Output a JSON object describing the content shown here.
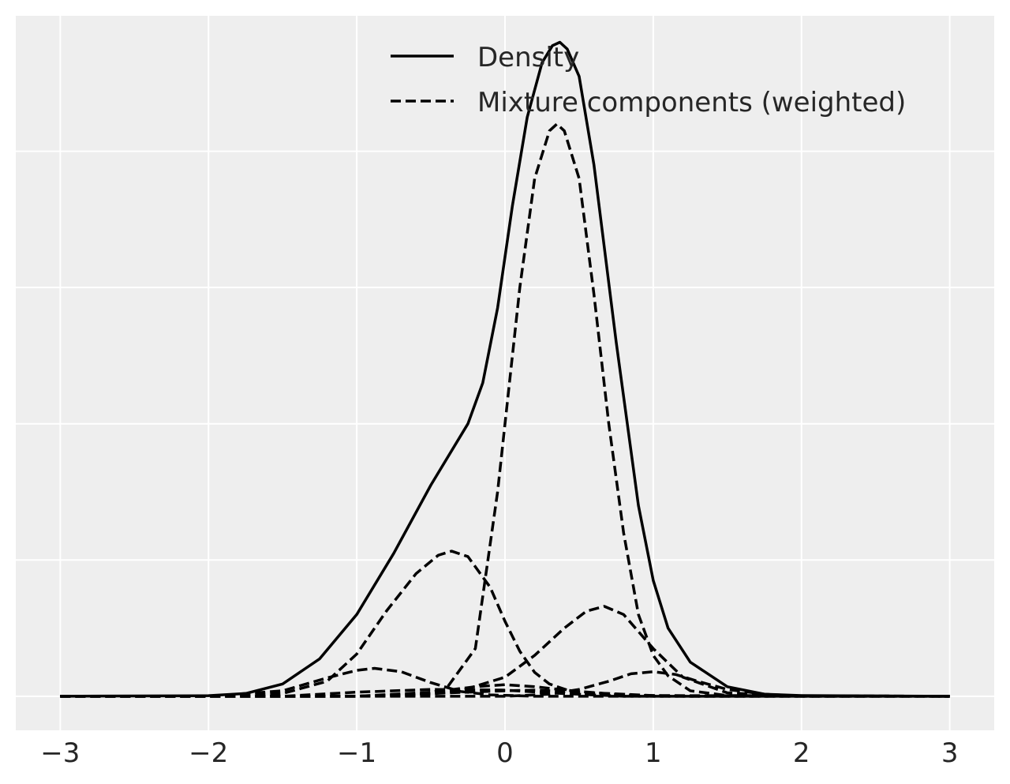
{
  "chart_data": {
    "type": "line",
    "title": "",
    "xlabel": "",
    "ylabel": "",
    "xlim": [
      -3.3,
      3.3
    ],
    "ylim": [
      -0.05,
      1.0
    ],
    "x_ticks": [
      -3,
      -2,
      -1,
      0,
      1,
      2,
      3
    ],
    "x_tick_labels": [
      "−3",
      "−2",
      "−1",
      "0",
      "1",
      "2",
      "3"
    ],
    "y_grid": [
      0.0,
      0.2,
      0.4,
      0.6,
      0.8,
      1.0
    ],
    "grid": true,
    "legend_placement": "top-right",
    "legend": [
      {
        "label": "Density",
        "style": "solid"
      },
      {
        "label": "Mixture components (weighted)",
        "style": "dashed"
      }
    ],
    "series": [
      {
        "style": "solid",
        "x": [
          -3.0,
          -2.0,
          -1.75,
          -1.5,
          -1.25,
          -1.0,
          -0.75,
          -0.5,
          -0.25,
          -0.15,
          -0.05,
          0.05,
          0.15,
          0.25,
          0.32,
          0.37,
          0.42,
          0.5,
          0.6,
          0.75,
          0.9,
          1.0,
          1.1,
          1.25,
          1.5,
          1.75,
          2.0,
          3.0
        ],
        "y": [
          0.0,
          0.0008,
          0.004,
          0.018,
          0.055,
          0.12,
          0.21,
          0.31,
          0.4,
          0.46,
          0.57,
          0.72,
          0.85,
          0.93,
          0.955,
          0.96,
          0.95,
          0.91,
          0.78,
          0.52,
          0.28,
          0.17,
          0.1,
          0.05,
          0.014,
          0.003,
          0.001,
          0.0
        ]
      },
      {
        "style": "dashed",
        "x": [
          -3.0,
          -2.0,
          -1.5,
          -1.2,
          -1.0,
          -0.8,
          -0.6,
          -0.45,
          -0.36,
          -0.25,
          -0.1,
          0.0,
          0.1,
          0.2,
          0.3,
          0.5,
          0.8,
          1.2,
          2.0,
          3.0
        ],
        "y": [
          0.0,
          0.0,
          0.004,
          0.022,
          0.062,
          0.125,
          0.18,
          0.207,
          0.213,
          0.205,
          0.16,
          0.11,
          0.066,
          0.035,
          0.018,
          0.003,
          0.0,
          0.0,
          0.0,
          0.0
        ]
      },
      {
        "style": "dashed",
        "x": [
          -3.0,
          -1.0,
          -0.6,
          -0.4,
          -0.2,
          -0.05,
          0.1,
          0.2,
          0.3,
          0.35,
          0.4,
          0.5,
          0.6,
          0.7,
          0.8,
          0.9,
          1.0,
          1.1,
          1.25,
          1.5,
          3.0
        ],
        "y": [
          0.0,
          0.0,
          0.0015,
          0.01,
          0.07,
          0.3,
          0.6,
          0.76,
          0.83,
          0.84,
          0.83,
          0.76,
          0.59,
          0.4,
          0.24,
          0.12,
          0.06,
          0.03,
          0.008,
          0.001,
          0.0
        ]
      },
      {
        "style": "dashed",
        "x": [
          -3.0,
          -1.2,
          -0.6,
          -0.3,
          0.0,
          0.2,
          0.4,
          0.55,
          0.67,
          0.8,
          1.0,
          1.2,
          1.5,
          2.0,
          3.0
        ],
        "y": [
          0.0,
          0.0,
          0.001,
          0.008,
          0.028,
          0.06,
          0.1,
          0.125,
          0.132,
          0.12,
          0.07,
          0.028,
          0.005,
          0.0,
          0.0
        ]
      },
      {
        "style": "dashed",
        "x": [
          -3.0,
          -2.0,
          -1.5,
          -1.2,
          -1.0,
          -0.88,
          -0.7,
          -0.5,
          -0.3,
          -0.1,
          0.2,
          0.5,
          3.0
        ],
        "y": [
          0.0,
          0.0,
          0.008,
          0.027,
          0.038,
          0.041,
          0.036,
          0.02,
          0.007,
          0.002,
          0.0,
          0.0,
          0.0
        ]
      },
      {
        "style": "dashed",
        "x": [
          -3.0,
          0.0,
          0.3,
          0.5,
          0.7,
          0.85,
          1.0,
          1.15,
          1.3,
          1.5,
          1.75,
          2.0,
          3.0
        ],
        "y": [
          0.0,
          0.0,
          0.003,
          0.01,
          0.022,
          0.033,
          0.036,
          0.032,
          0.022,
          0.01,
          0.003,
          0.0005,
          0.0
        ]
      },
      {
        "style": "dashed",
        "x": [
          -3.0,
          -1.0,
          -0.5,
          -0.2,
          0.0,
          0.2,
          0.5,
          0.8,
          1.2,
          3.0
        ],
        "y": [
          0.0,
          0.0,
          0.006,
          0.014,
          0.017,
          0.014,
          0.007,
          0.002,
          0.0,
          0.0
        ]
      },
      {
        "style": "dashed",
        "x": [
          -3.0,
          -1.5,
          -1.0,
          -0.5,
          0.0,
          0.3,
          0.6,
          1.0,
          3.0
        ],
        "y": [
          0.0,
          0.0,
          0.006,
          0.01,
          0.009,
          0.005,
          0.002,
          0.0,
          0.0
        ]
      },
      {
        "style": "dashed",
        "x": [
          -3.0,
          -1.0,
          -0.5,
          0.0,
          0.2,
          0.5,
          1.0,
          3.0
        ],
        "y": [
          0.0,
          0.0,
          0.004,
          0.008,
          0.009,
          0.006,
          0.001,
          0.0
        ]
      }
    ]
  }
}
